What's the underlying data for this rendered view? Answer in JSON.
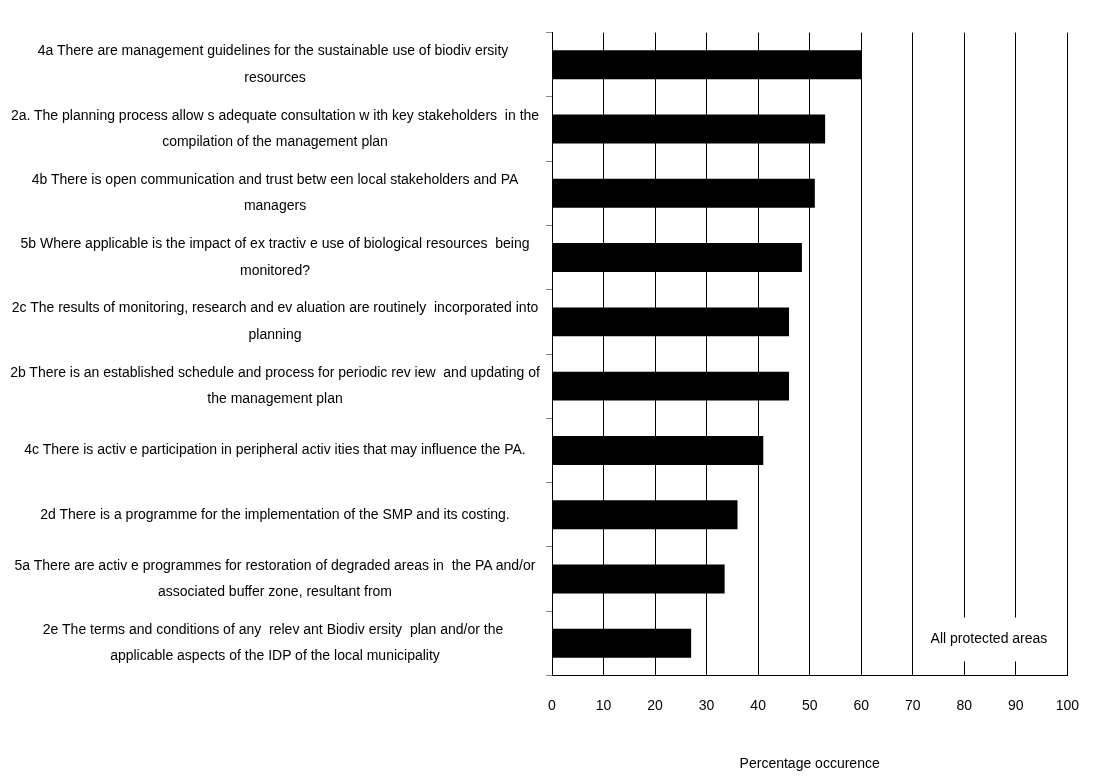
{
  "chart_data": {
    "type": "bar",
    "orientation": "horizontal",
    "xlabel": "Percentage occurence",
    "categories": [
      "4a There are management guidelines for the sustainable use of biodiv ersity  resources",
      "2a. The planning process allow s adequate consultation w ith key stakeholders  in the compilation of the management plan",
      "4b There is open communication and trust betw een local stakeholders and PA managers",
      "5b Where applicable is the impact of ex tractiv e use of biological resources  being monitored?",
      "2c The results of monitoring, research and ev aluation are routinely  incorporated into planning",
      "2b There is an established schedule and process for periodic rev iew  and updating of the management plan",
      "4c There is activ e participation in peripheral activ ities that may influence the PA.",
      "2d There is a programme for the implementation of the SMP and its costing.",
      "5a There are activ e programmes for restoration of degraded areas in  the PA and/or associated buffer zone, resultant from",
      "2e The terms and conditions of any  relev ant Biodiv ersity  plan and/or the  applicable aspects of the IDP of the local municipality"
    ],
    "values": [
      60,
      53,
      51,
      48.5,
      46,
      46,
      41,
      36,
      33.5,
      27
    ],
    "color": "#000000",
    "xlim": [
      0,
      100
    ],
    "xticks": [
      0,
      10,
      20,
      30,
      40,
      50,
      60,
      70,
      80,
      90,
      100
    ],
    "grid": "x",
    "legend": false,
    "annotations": [
      "All protected areas"
    ]
  }
}
